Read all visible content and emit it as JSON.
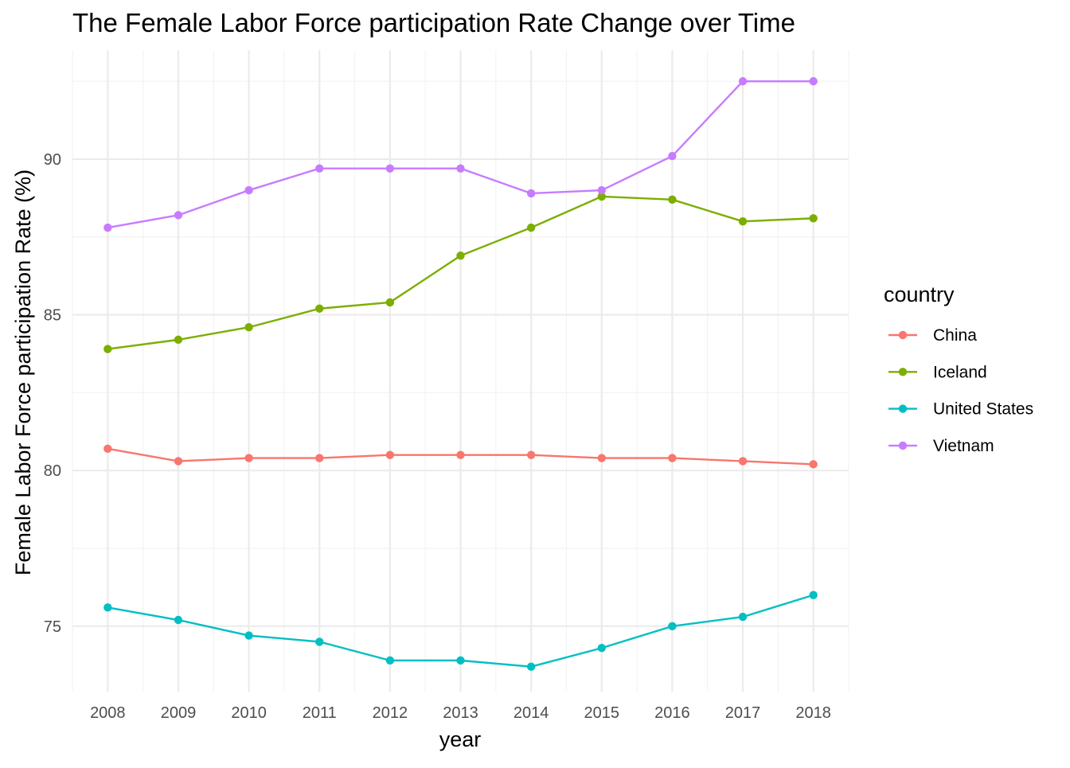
{
  "chart_data": {
    "type": "line",
    "title": "The Female Labor Force participation Rate Change over Time",
    "xlabel": "year",
    "ylabel": "Female Labor Force participation Rate (%)",
    "x": [
      2008,
      2009,
      2010,
      2011,
      2012,
      2013,
      2014,
      2015,
      2016,
      2017,
      2018
    ],
    "x_tick_labels": [
      "2008",
      "2009",
      "2010",
      "2011",
      "2012",
      "2013",
      "2014",
      "2015",
      "2016",
      "2017",
      "2018"
    ],
    "y_ticks": [
      75,
      80,
      85,
      90
    ],
    "y_tick_labels": [
      "75",
      "80",
      "85",
      "90"
    ],
    "xlim": [
      2007.5,
      2018.5
    ],
    "ylim": [
      72.9,
      93.5
    ],
    "grid": true,
    "legend": {
      "title": "country",
      "placement": "right"
    },
    "series": [
      {
        "name": "China",
        "color": "#F8766D",
        "values": [
          80.7,
          80.3,
          80.4,
          80.4,
          80.5,
          80.5,
          80.5,
          80.4,
          80.4,
          80.3,
          80.2
        ]
      },
      {
        "name": "Iceland",
        "color": "#7CAE00",
        "values": [
          83.9,
          84.2,
          84.6,
          85.2,
          85.4,
          86.9,
          87.8,
          88.8,
          88.7,
          88.0,
          88.1
        ]
      },
      {
        "name": "United States",
        "color": "#00BFC4",
        "values": [
          75.6,
          75.2,
          74.7,
          74.5,
          73.9,
          73.9,
          73.7,
          74.3,
          75.0,
          75.3,
          76.0
        ]
      },
      {
        "name": "Vietnam",
        "color": "#C77CFF",
        "values": [
          87.8,
          88.2,
          89.0,
          89.7,
          89.7,
          89.7,
          88.9,
          89.0,
          90.1,
          92.5,
          92.5
        ]
      }
    ]
  }
}
